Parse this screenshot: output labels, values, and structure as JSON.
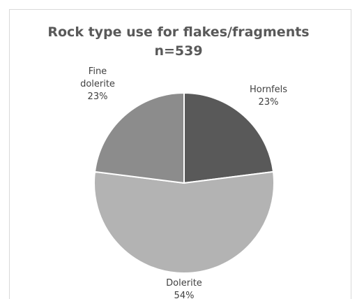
{
  "chart_data": {
    "type": "pie",
    "title": "Rock type use for flakes/fragments",
    "subtitle": "n=539",
    "slices": [
      {
        "label": "Hornfels",
        "label_lines": [
          "Hornfels"
        ],
        "percent_label": "23%",
        "value": 23,
        "color": "#595959"
      },
      {
        "label": "Dolerite",
        "label_lines": [
          "Dolerite"
        ],
        "percent_label": "54%",
        "value": 54,
        "color": "#b3b3b3"
      },
      {
        "label": "Fine dolerite",
        "label_lines": [
          "Fine",
          "dolerite"
        ],
        "percent_label": "23%",
        "value": 23,
        "color": "#8c8c8c"
      }
    ],
    "legend": "none"
  }
}
